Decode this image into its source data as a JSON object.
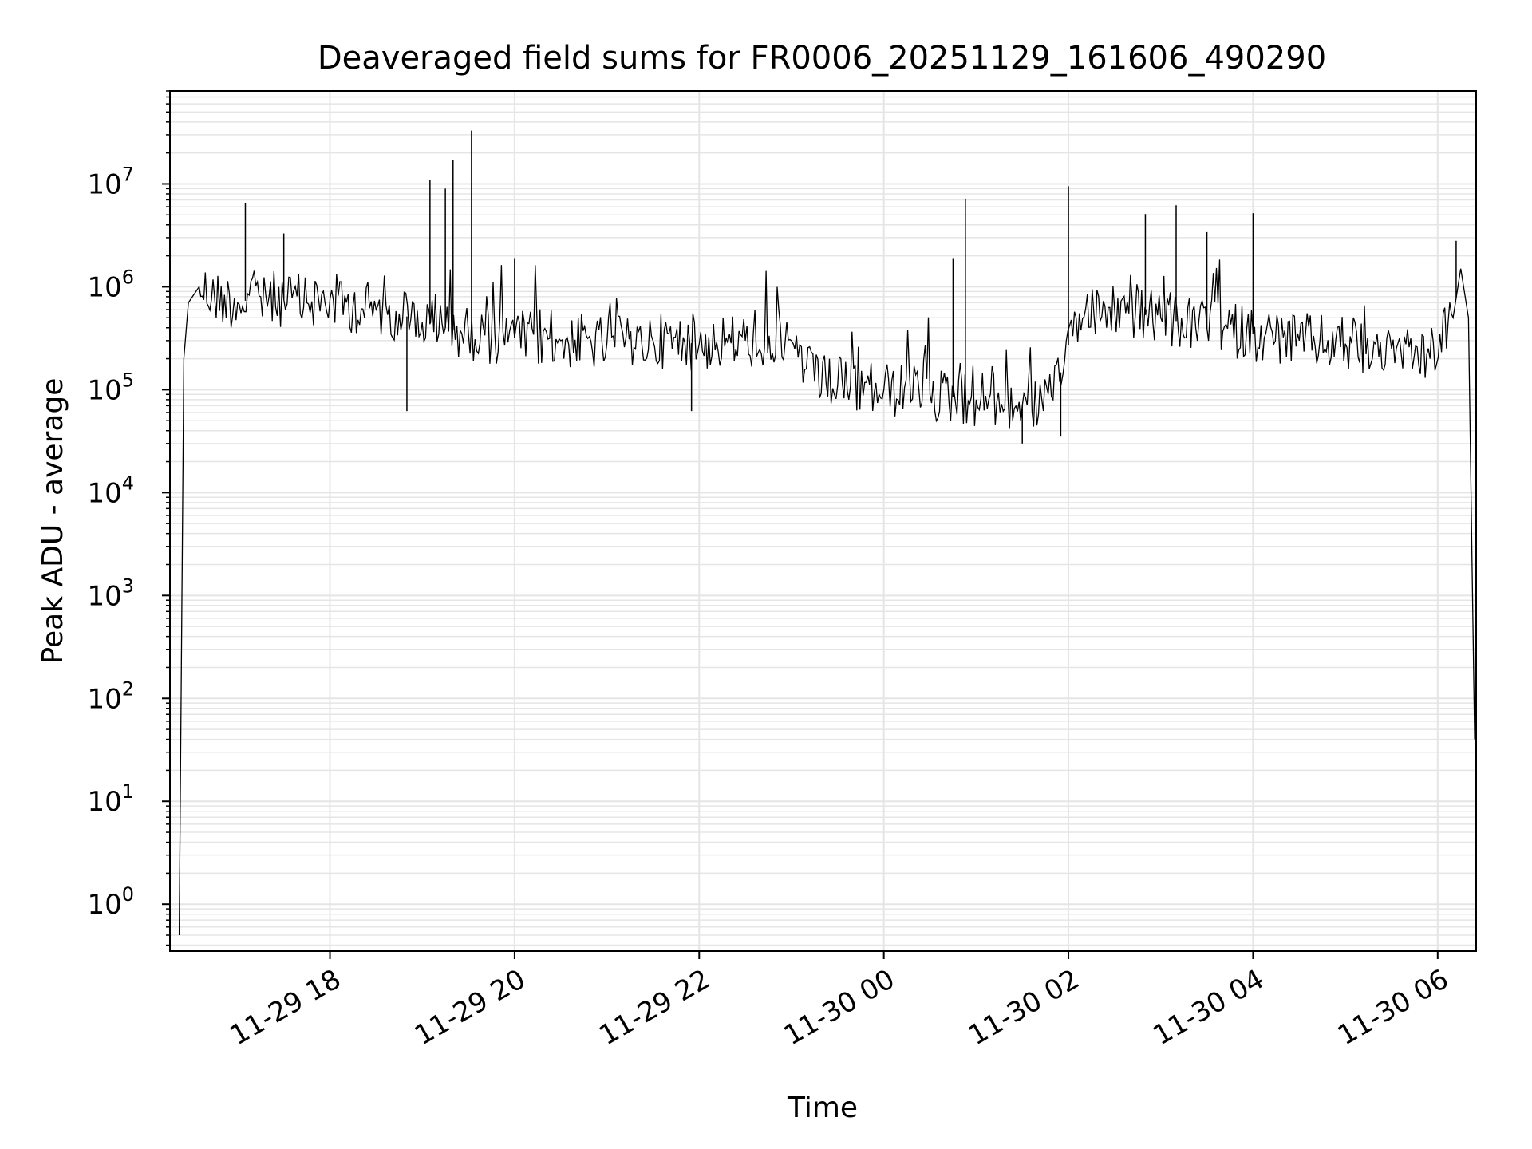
{
  "chart_data": {
    "type": "line",
    "title": "Deaveraged field sums for FR0006_20251129_161606_490290",
    "xlabel": "Time",
    "ylabel": "Peak ADU - average",
    "yscale": "log",
    "ylim": [
      0.35,
      80000000
    ],
    "xlim": [
      "2025-11-29 16:16",
      "2025-11-30 06:25"
    ],
    "grid": true,
    "line_color": "#000000",
    "grid_color": "#e5e5e5",
    "x_ticks": [
      {
        "label": "11-29 18",
        "value": "2025-11-29 18:00"
      },
      {
        "label": "11-29 20",
        "value": "2025-11-29 20:00"
      },
      {
        "label": "11-29 22",
        "value": "2025-11-29 22:00"
      },
      {
        "label": "11-30 00",
        "value": "2025-11-30 00:00"
      },
      {
        "label": "11-30 02",
        "value": "2025-11-30 02:00"
      },
      {
        "label": "11-30 04",
        "value": "2025-11-30 04:00"
      },
      {
        "label": "11-30 06",
        "value": "2025-11-30 06:00"
      }
    ],
    "y_ticks": [
      {
        "base": "10",
        "exp": "0",
        "value": 1
      },
      {
        "base": "10",
        "exp": "1",
        "value": 10
      },
      {
        "base": "10",
        "exp": "2",
        "value": 100
      },
      {
        "base": "10",
        "exp": "3",
        "value": 1000
      },
      {
        "base": "10",
        "exp": "4",
        "value": 10000
      },
      {
        "base": "10",
        "exp": "5",
        "value": 100000
      },
      {
        "base": "10",
        "exp": "6",
        "value": 1000000
      },
      {
        "base": "10",
        "exp": "7",
        "value": 10000000
      }
    ],
    "series": [
      {
        "x": [
          "2025-11-29 16:22",
          "2025-11-29 16:25",
          "2025-11-29 16:28",
          "2025-11-29 16:35",
          "2025-11-29 16:45",
          "2025-11-29 17:00",
          "2025-11-29 17:15",
          "2025-11-29 17:30",
          "2025-11-29 17:45",
          "2025-11-29 18:00",
          "2025-11-29 18:15",
          "2025-11-29 18:30",
          "2025-11-29 18:45",
          "2025-11-29 19:00",
          "2025-11-29 19:15",
          "2025-11-29 19:30",
          "2025-11-29 19:45",
          "2025-11-29 20:00",
          "2025-11-29 20:30",
          "2025-11-29 21:00",
          "2025-11-29 21:30",
          "2025-11-29 22:00",
          "2025-11-29 22:30",
          "2025-11-29 23:00",
          "2025-11-29 23:15",
          "2025-11-29 23:30",
          "2025-11-30 00:00",
          "2025-11-30 00:30",
          "2025-11-30 01:00",
          "2025-11-30 01:30",
          "2025-11-30 01:50",
          "2025-11-30 02:05",
          "2025-11-30 02:30",
          "2025-11-30 03:00",
          "2025-11-30 03:30",
          "2025-11-30 04:00",
          "2025-11-30 04:30",
          "2025-11-30 05:00",
          "2025-11-30 05:30",
          "2025-11-30 05:55",
          "2025-11-30 06:10",
          "2025-11-30 06:15",
          "2025-11-30 06:20",
          "2025-11-30 06:24"
        ],
        "y": [
          0.5,
          200000,
          700000,
          1000000,
          800000,
          700000,
          800000,
          750000,
          700000,
          750000,
          650000,
          600000,
          550000,
          450000,
          400000,
          350000,
          330000,
          320000,
          300000,
          280000,
          300000,
          280000,
          300000,
          300000,
          120000,
          110000,
          100000,
          90000,
          80000,
          70000,
          80000,
          500000,
          600000,
          500000,
          400000,
          350000,
          300000,
          280000,
          250000,
          200000,
          500000,
          1500000,
          500000,
          40
        ]
      }
    ],
    "peaks": [
      {
        "x": "2025-11-29 17:05",
        "y": 6500000
      },
      {
        "x": "2025-11-29 17:30",
        "y": 3300000
      },
      {
        "x": "2025-11-29 19:05",
        "y": 11000000
      },
      {
        "x": "2025-11-29 19:15",
        "y": 9000000
      },
      {
        "x": "2025-11-29 19:20",
        "y": 17000000
      },
      {
        "x": "2025-11-29 19:32",
        "y": 33000000
      },
      {
        "x": "2025-11-29 20:00",
        "y": 1900000
      },
      {
        "x": "2025-11-30 00:45",
        "y": 1900000
      },
      {
        "x": "2025-11-30 00:53",
        "y": 7200000
      },
      {
        "x": "2025-11-30 02:00",
        "y": 9500000
      },
      {
        "x": "2025-11-30 02:50",
        "y": 5100000
      },
      {
        "x": "2025-11-30 03:10",
        "y": 6200000
      },
      {
        "x": "2025-11-30 03:30",
        "y": 3400000
      },
      {
        "x": "2025-11-30 04:00",
        "y": 5200000
      },
      {
        "x": "2025-11-30 06:12",
        "y": 2800000
      }
    ],
    "troughs": [
      {
        "x": "2025-11-29 18:50",
        "y": 62000
      },
      {
        "x": "2025-11-29 21:55",
        "y": 62000
      },
      {
        "x": "2025-11-30 01:30",
        "y": 30000
      },
      {
        "x": "2025-11-30 01:55",
        "y": 35000
      }
    ]
  }
}
